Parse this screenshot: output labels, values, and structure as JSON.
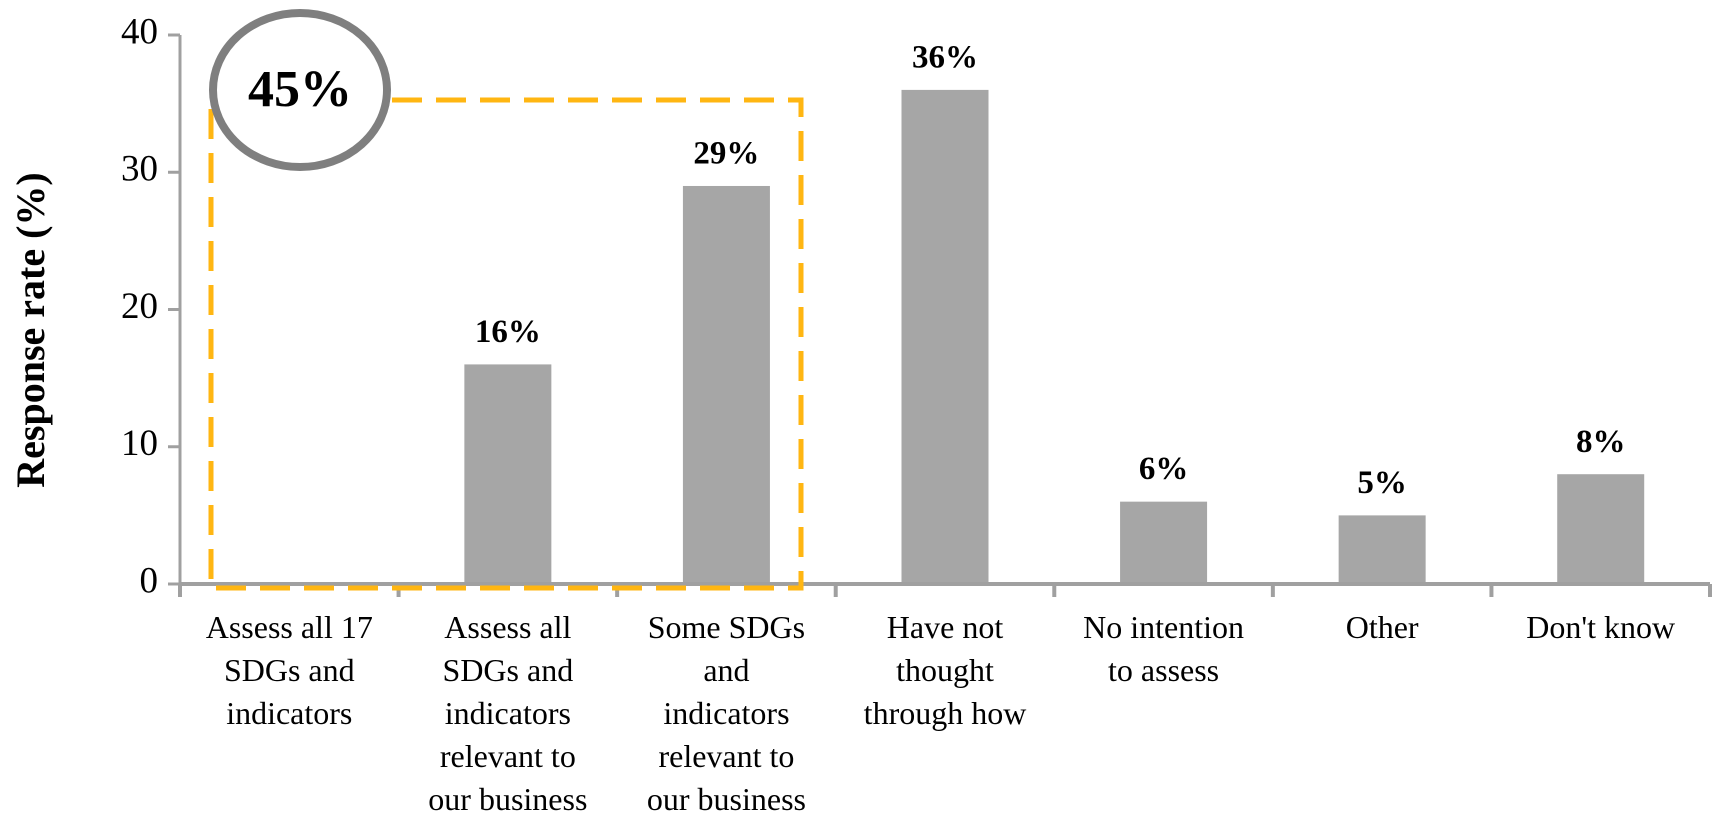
{
  "chart_data": {
    "type": "bar",
    "ylabel": "Response rate (%)",
    "categories": [
      [
        "Assess all 17",
        "SDGs and",
        "indicators"
      ],
      [
        "Assess all",
        "SDGs and",
        "indicators",
        "relevant to",
        "our business"
      ],
      [
        "Some SDGs",
        "and",
        "indicators",
        "relevant to",
        "our business"
      ],
      [
        "Have not",
        "thought",
        "through how"
      ],
      [
        "No intention",
        "to assess"
      ],
      [
        "Other"
      ],
      [
        "Don't know"
      ]
    ],
    "values": [
      0,
      16,
      29,
      36,
      6,
      5,
      8
    ],
    "value_labels": [
      null,
      "16%",
      "29%",
      "36%",
      "6%",
      "5%",
      "8%"
    ],
    "color": "#a6a6a6",
    "ylim": [
      0,
      40
    ],
    "yticks": [
      0,
      10,
      20,
      30,
      40
    ],
    "annotation": "45%",
    "annotation_color": "#ffb612"
  }
}
